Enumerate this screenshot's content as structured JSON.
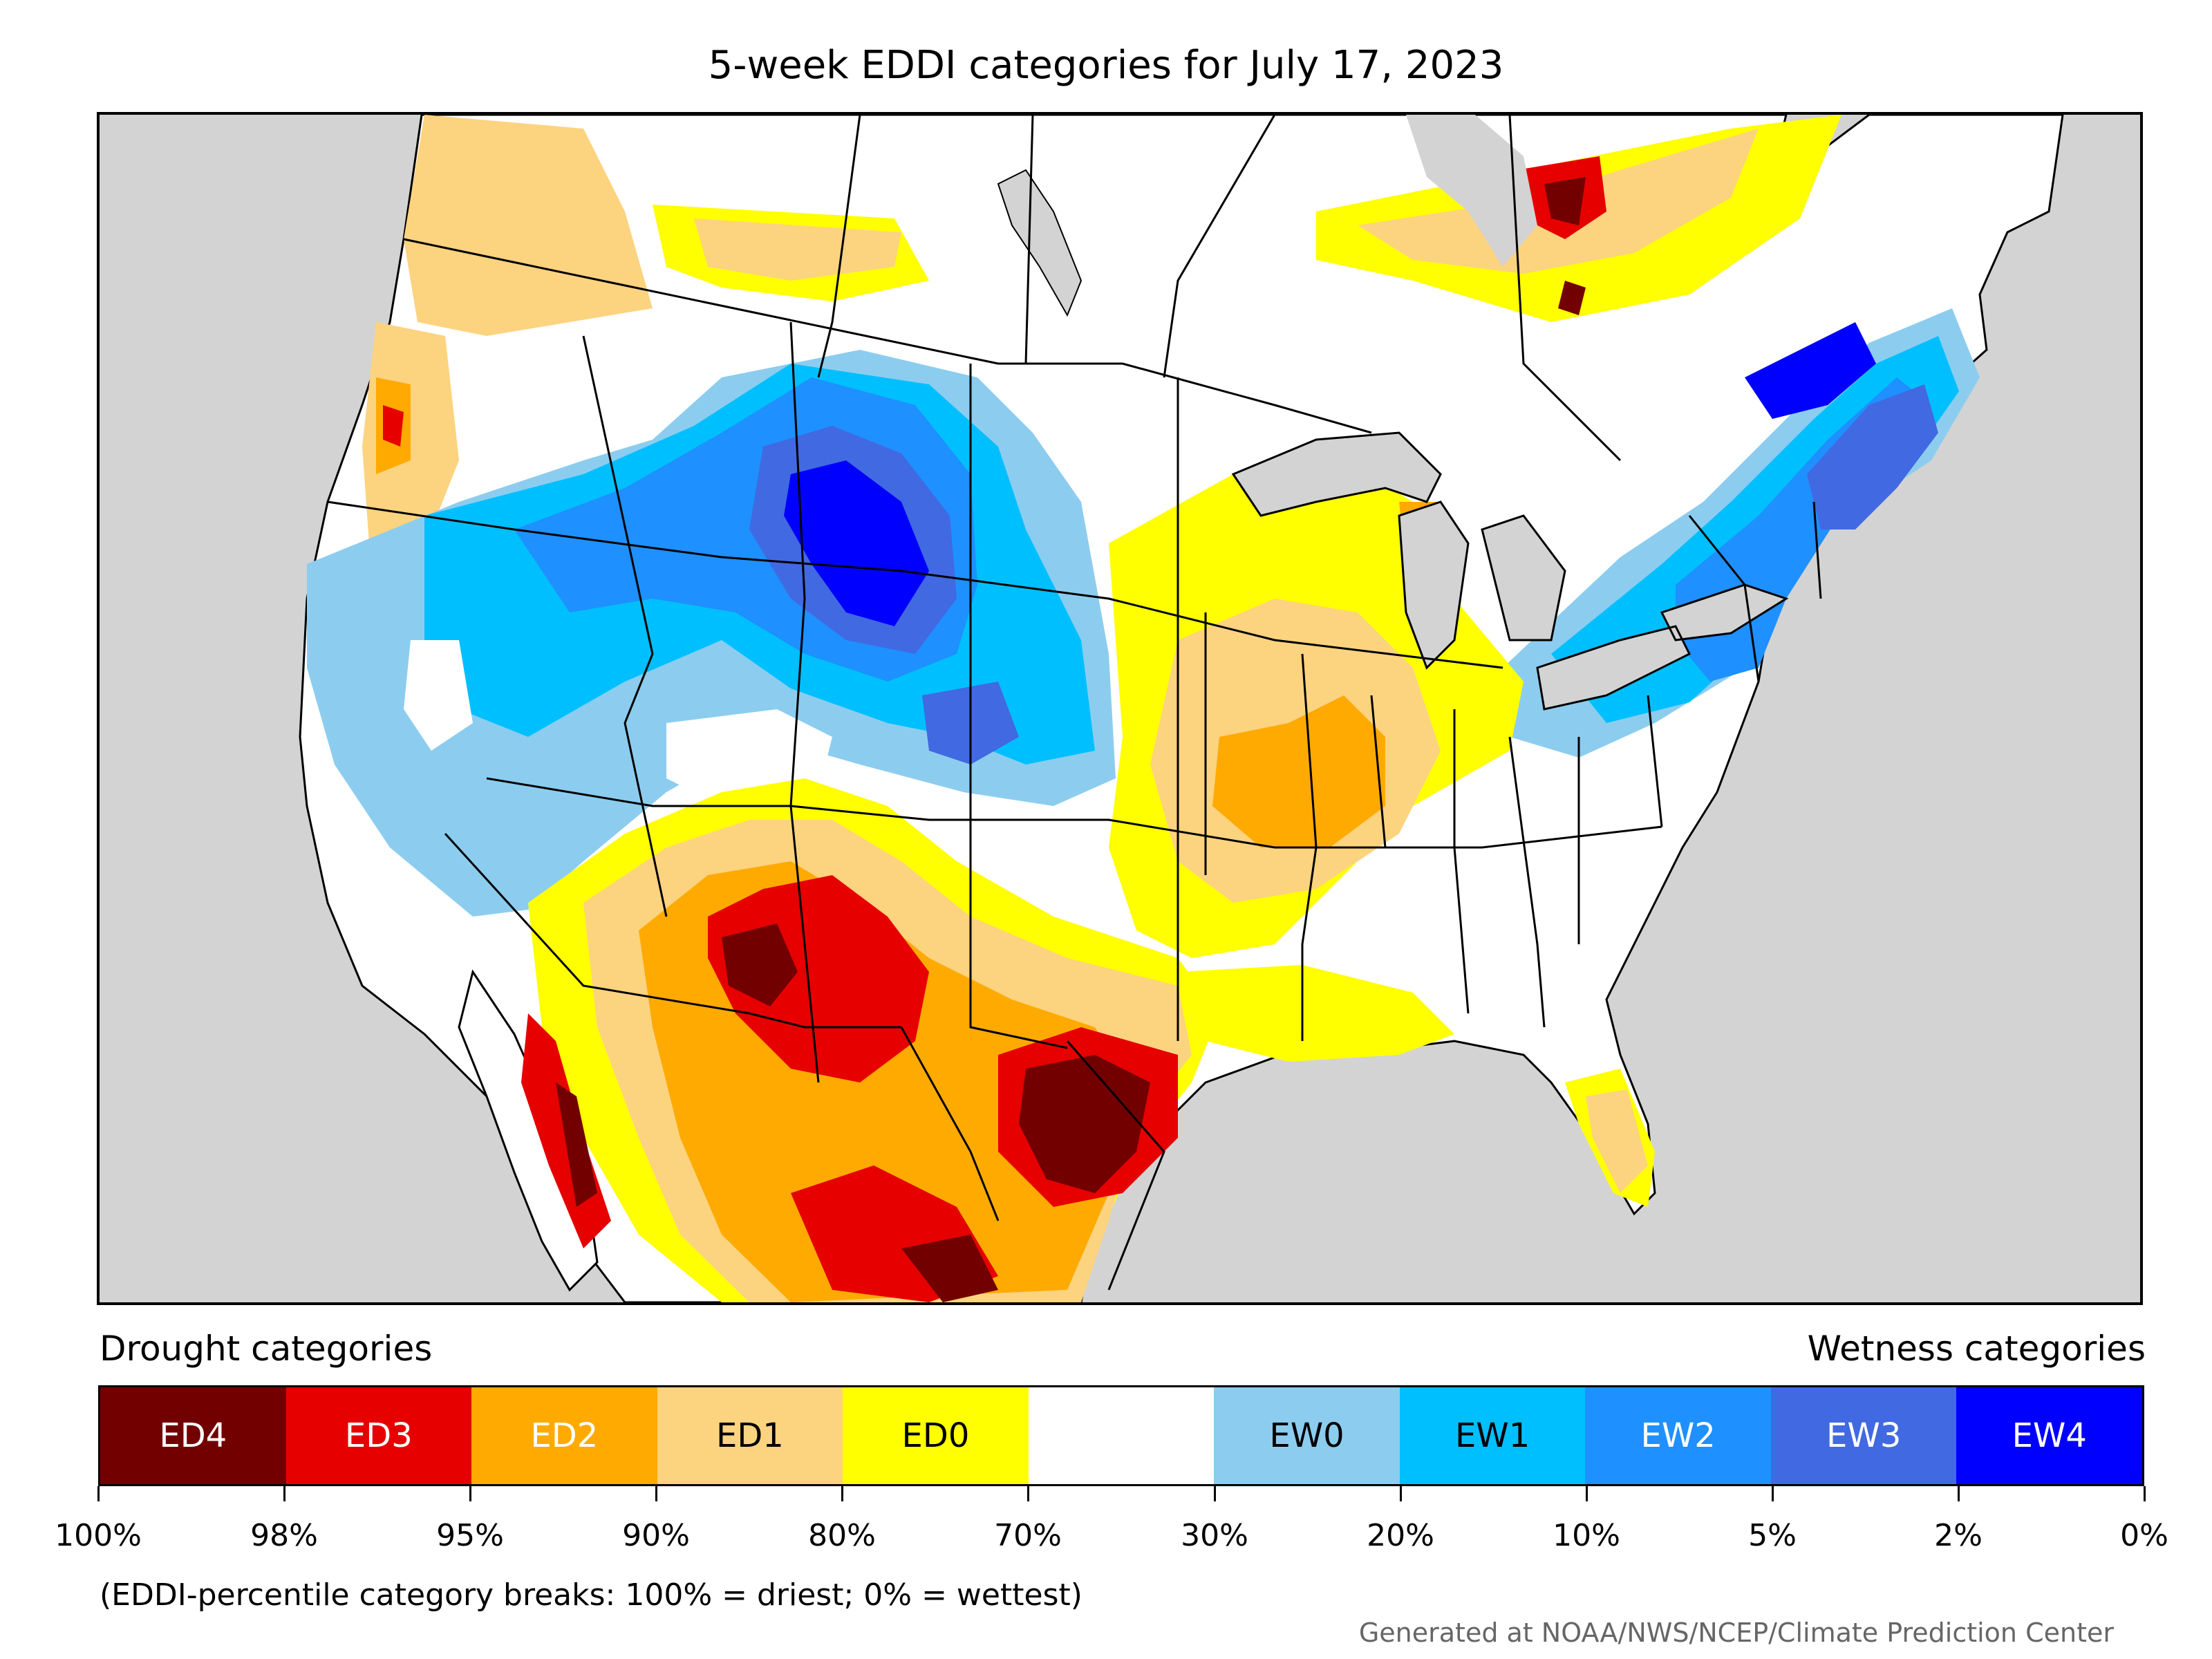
{
  "title": "5-week EDDI categories for July 17, 2023",
  "legend": {
    "drought_heading": "Drought categories",
    "wetness_heading": "Wetness categories",
    "categories": [
      {
        "label": "ED4",
        "color": "#730000",
        "text_color": "#ffffff"
      },
      {
        "label": "ED3",
        "color": "#e60000",
        "text_color": "#ffffff"
      },
      {
        "label": "ED2",
        "color": "#ffaa00",
        "text_color": "#ffffff"
      },
      {
        "label": "ED1",
        "color": "#fcd37f",
        "text_color": "#000000"
      },
      {
        "label": "ED0",
        "color": "#ffff00",
        "text_color": "#000000"
      },
      {
        "label": "",
        "color": "#ffffff",
        "text_color": "#000000"
      },
      {
        "label": "EW0",
        "color": "#8ccdef",
        "text_color": "#000000"
      },
      {
        "label": "EW1",
        "color": "#00bfff",
        "text_color": "#000000"
      },
      {
        "label": "EW2",
        "color": "#1e90ff",
        "text_color": "#ffffff"
      },
      {
        "label": "EW3",
        "color": "#4169e1",
        "text_color": "#ffffff"
      },
      {
        "label": "EW4",
        "color": "#0000ff",
        "text_color": "#ffffff"
      }
    ],
    "breaks": [
      "100%",
      "98%",
      "95%",
      "90%",
      "80%",
      "70%",
      "30%",
      "20%",
      "10%",
      "5%",
      "2%",
      "0%"
    ]
  },
  "note": "(EDDI-percentile category breaks: 100% = driest; 0% = wettest)",
  "credit": "Generated at NOAA/NWS/NCEP/Climate Prediction Center",
  "map_regions": [
    {
      "name": "canada-sw-ed1",
      "category": "ED1"
    },
    {
      "name": "canada-prairie-ed0",
      "category": "ED0"
    },
    {
      "name": "ontario-ed1",
      "category": "ED1"
    },
    {
      "name": "ontario-ed3",
      "category": "ED3"
    },
    {
      "name": "ontario-ed4",
      "category": "ED4"
    },
    {
      "name": "pacific-nw-ed2",
      "category": "ED2"
    },
    {
      "name": "west-ew0",
      "category": "EW0"
    },
    {
      "name": "great-basin-ew1",
      "category": "EW1"
    },
    {
      "name": "idaho-wyoming-ew2",
      "category": "EW2"
    },
    {
      "name": "wyoming-ew3",
      "category": "EW3"
    },
    {
      "name": "wyoming-ew4",
      "category": "EW4"
    },
    {
      "name": "northeast-ew1",
      "category": "EW1"
    },
    {
      "name": "northeast-ew2",
      "category": "EW2"
    },
    {
      "name": "new-england-ew3",
      "category": "EW3"
    },
    {
      "name": "quebec-ew4",
      "category": "EW4"
    },
    {
      "name": "southwest-ed0",
      "category": "ED0"
    },
    {
      "name": "southwest-ed1",
      "category": "ED1"
    },
    {
      "name": "southwest-ed2",
      "category": "ED2"
    },
    {
      "name": "new-mexico-ed3",
      "category": "ED3"
    },
    {
      "name": "arizona-ed4",
      "category": "ED4"
    },
    {
      "name": "texas-ed3",
      "category": "ED3"
    },
    {
      "name": "texas-ed4",
      "category": "ED4"
    },
    {
      "name": "mexico-ed4",
      "category": "ED4"
    },
    {
      "name": "midwest-ed0",
      "category": "ED0"
    },
    {
      "name": "midwest-ed1",
      "category": "ED1"
    },
    {
      "name": "missouri-illinois-ed2",
      "category": "ED2"
    },
    {
      "name": "florida-ed1",
      "category": "ED1"
    },
    {
      "name": "baja-ed3",
      "category": "ED3"
    }
  ]
}
